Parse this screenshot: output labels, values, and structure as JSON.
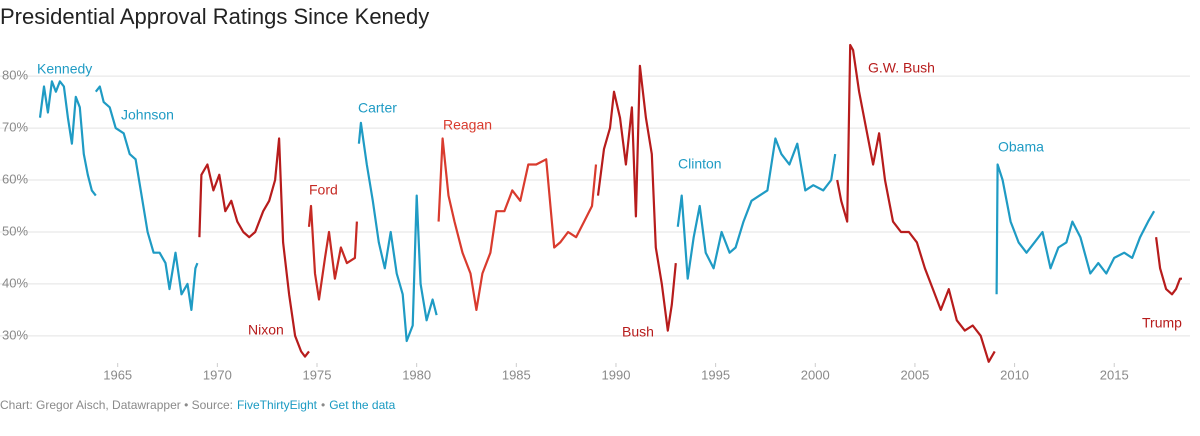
{
  "chart_data": {
    "type": "line",
    "title": "Presidential Approval Ratings Since Kenedy",
    "notes": {
      "credit": "Chart: Gregor Aisch, Datawrapper • Source:",
      "source": "FiveThirtyEight",
      "separator": "•",
      "link": "Get the data"
    },
    "xlim": [
      1960.6,
      2018.4
    ],
    "xticks": [
      1965,
      1970,
      1975,
      1980,
      1985,
      1990,
      1995,
      2000,
      2005,
      2010,
      2015
    ],
    "ylim": [
      24,
      86
    ],
    "yticks": [
      {
        "value": 30,
        "label": "30%"
      },
      {
        "value": 40,
        "label": "40%"
      },
      {
        "value": 50,
        "label": "50%"
      },
      {
        "value": 60,
        "label": "60%"
      },
      {
        "value": 70,
        "label": "70%"
      },
      {
        "value": 80,
        "label": "80%"
      }
    ],
    "grid": true,
    "series": [
      {
        "name": "Kennedy",
        "color": "#1f9bc4",
        "x": [
          1961.1,
          1961.3,
          1961.5,
          1961.7,
          1961.9,
          1962.1,
          1962.3,
          1962.5,
          1962.7,
          1962.9,
          1963.1,
          1963.3,
          1963.5,
          1963.7,
          1963.9
        ],
        "values": [
          72,
          78,
          73,
          79,
          77,
          79,
          78,
          72,
          67,
          76,
          74,
          65,
          61,
          58,
          57
        ]
      },
      {
        "name": "Johnson",
        "color": "#1f9bc4",
        "x": [
          1963.9,
          1964.1,
          1964.3,
          1964.6,
          1964.9,
          1965.3,
          1965.6,
          1965.9,
          1966.2,
          1966.5,
          1966.8,
          1967.1,
          1967.4,
          1967.6,
          1967.9,
          1968.2,
          1968.5,
          1968.7,
          1968.9,
          1969.0
        ],
        "values": [
          77,
          78,
          75,
          74,
          70,
          69,
          65,
          64,
          57,
          50,
          46,
          46,
          44,
          39,
          46,
          38,
          40,
          35,
          43,
          44
        ]
      },
      {
        "name": "Nixon",
        "color": "#b71c1c",
        "x": [
          1969.1,
          1969.2,
          1969.5,
          1969.8,
          1970.1,
          1970.4,
          1970.7,
          1971.0,
          1971.3,
          1971.6,
          1971.9,
          1972.3,
          1972.6,
          1972.9,
          1973.1,
          1973.3,
          1973.6,
          1973.9,
          1974.2,
          1974.4,
          1974.6
        ],
        "values": [
          49,
          61,
          63,
          58,
          61,
          54,
          56,
          52,
          50,
          49,
          50,
          54,
          56,
          60,
          68,
          48,
          38,
          30,
          27,
          26,
          27
        ]
      },
      {
        "name": "Ford",
        "color": "#c62a24",
        "x": [
          1974.6,
          1974.7,
          1974.9,
          1975.1,
          1975.4,
          1975.6,
          1975.9,
          1976.2,
          1976.5,
          1976.9,
          1977.0
        ],
        "values": [
          51,
          55,
          42,
          37,
          45,
          50,
          41,
          47,
          44,
          45,
          52
        ]
      },
      {
        "name": "Carter",
        "color": "#1f9bc4",
        "x": [
          1977.1,
          1977.2,
          1977.5,
          1977.8,
          1978.1,
          1978.4,
          1978.7,
          1979.0,
          1979.3,
          1979.5,
          1979.8,
          1980.0,
          1980.2,
          1980.5,
          1980.8,
          1981.0
        ],
        "values": [
          67,
          71,
          63,
          56,
          48,
          43,
          50,
          42,
          38,
          29,
          32,
          57,
          40,
          33,
          37,
          34
        ]
      },
      {
        "name": "Reagan",
        "color": "#d93b2e",
        "x": [
          1981.1,
          1981.3,
          1981.6,
          1981.9,
          1982.3,
          1982.7,
          1983.0,
          1983.3,
          1983.7,
          1984.0,
          1984.4,
          1984.8,
          1985.2,
          1985.6,
          1986.0,
          1986.5,
          1986.9,
          1987.2,
          1987.6,
          1988.0,
          1988.4,
          1988.8,
          1989.0
        ],
        "values": [
          52,
          68,
          57,
          52,
          46,
          42,
          35,
          42,
          46,
          54,
          54,
          58,
          56,
          63,
          63,
          64,
          47,
          48,
          50,
          49,
          52,
          55,
          63
        ]
      },
      {
        "name": "Bush",
        "color": "#b71c1c",
        "x": [
          1989.1,
          1989.4,
          1989.7,
          1989.9,
          1990.2,
          1990.5,
          1990.8,
          1991.0,
          1991.2,
          1991.5,
          1991.8,
          1992.0,
          1992.3,
          1992.6,
          1992.8,
          1993.0
        ],
        "values": [
          57,
          66,
          70,
          77,
          72,
          63,
          74,
          53,
          82,
          72,
          65,
          47,
          40,
          31,
          36,
          44
        ]
      },
      {
        "name": "Clinton",
        "color": "#1f9bc4",
        "x": [
          1993.1,
          1993.3,
          1993.6,
          1993.9,
          1994.2,
          1994.5,
          1994.9,
          1995.3,
          1995.7,
          1996.0,
          1996.4,
          1996.8,
          1997.2,
          1997.6,
          1998.0,
          1998.3,
          1998.7,
          1999.1,
          1999.5,
          1999.9,
          2000.4,
          2000.8,
          2001.0
        ],
        "values": [
          51,
          57,
          41,
          49,
          55,
          46,
          43,
          50,
          46,
          47,
          52,
          56,
          57,
          58,
          68,
          65,
          63,
          67,
          58,
          59,
          58,
          60,
          65
        ]
      },
      {
        "name": "G.W. Bush",
        "color": "#b71c1c",
        "x": [
          2001.1,
          2001.3,
          2001.6,
          2001.75,
          2001.9,
          2002.2,
          2002.6,
          2002.9,
          2003.2,
          2003.5,
          2003.9,
          2004.3,
          2004.7,
          2005.1,
          2005.5,
          2005.9,
          2006.3,
          2006.7,
          2007.1,
          2007.5,
          2007.9,
          2008.3,
          2008.7,
          2009.0
        ],
        "values": [
          60,
          56,
          52,
          86,
          85,
          77,
          69,
          63,
          69,
          60,
          52,
          50,
          50,
          48,
          43,
          39,
          35,
          39,
          33,
          31,
          32,
          30,
          25,
          27
        ]
      },
      {
        "name": "Obama",
        "color": "#1f9bc4",
        "x": [
          2009.1,
          2009.15,
          2009.4,
          2009.8,
          2010.2,
          2010.6,
          2011.0,
          2011.4,
          2011.8,
          2012.2,
          2012.6,
          2012.9,
          2013.3,
          2013.8,
          2014.2,
          2014.6,
          2015.0,
          2015.5,
          2015.9,
          2016.3,
          2016.7,
          2017.0
        ],
        "values": [
          38,
          63,
          60,
          52,
          48,
          46,
          48,
          50,
          43,
          47,
          48,
          52,
          49,
          42,
          44,
          42,
          45,
          46,
          45,
          49,
          52,
          54
        ]
      },
      {
        "name": "Trump",
        "color": "#b71c1c",
        "x": [
          2017.1,
          2017.3,
          2017.6,
          2017.9,
          2018.1,
          2018.3,
          2018.4
        ],
        "values": [
          49,
          43,
          39,
          38,
          39,
          41,
          41
        ]
      }
    ]
  }
}
